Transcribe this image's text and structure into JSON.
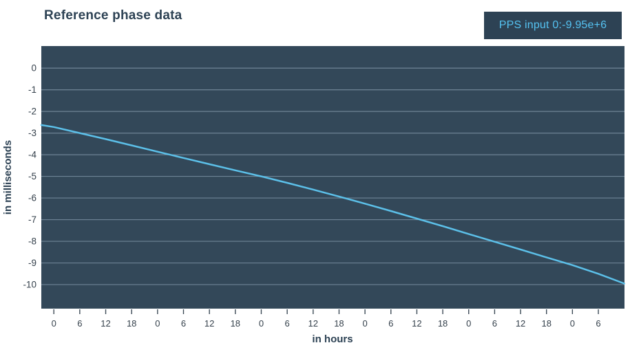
{
  "header": {
    "title": "Reference phase data"
  },
  "legend": {
    "label": "PPS input 0:-9.95e+6"
  },
  "chart_data": {
    "type": "line",
    "title": "Reference phase data",
    "xlabel": "in hours",
    "ylabel": "in milliseconds",
    "legend_entries": [
      "PPS input 0:-9.95e+6"
    ],
    "legend_position": "top-right",
    "grid": "horizontal-only",
    "axes": {
      "x_min": -2.9,
      "x_max": 132.05,
      "y_min": -11.11,
      "y_max": 1.02
    },
    "x_ticks": [
      {
        "t": 0,
        "label": "0"
      },
      {
        "t": 6,
        "label": "6"
      },
      {
        "t": 12,
        "label": "12"
      },
      {
        "t": 18,
        "label": "18"
      },
      {
        "t": 24,
        "label": "0"
      },
      {
        "t": 30,
        "label": "6"
      },
      {
        "t": 36,
        "label": "12"
      },
      {
        "t": 42,
        "label": "18"
      },
      {
        "t": 48,
        "label": "0"
      },
      {
        "t": 54,
        "label": "6"
      },
      {
        "t": 60,
        "label": "12"
      },
      {
        "t": 66,
        "label": "18"
      },
      {
        "t": 72,
        "label": "0"
      },
      {
        "t": 78,
        "label": "6"
      },
      {
        "t": 84,
        "label": "12"
      },
      {
        "t": 90,
        "label": "18"
      },
      {
        "t": 96,
        "label": "0"
      },
      {
        "t": 102,
        "label": "6"
      },
      {
        "t": 108,
        "label": "12"
      },
      {
        "t": 114,
        "label": "18"
      },
      {
        "t": 120,
        "label": "0"
      },
      {
        "t": 126,
        "label": "6"
      }
    ],
    "y_ticks": [
      {
        "v": 0,
        "label": "0"
      },
      {
        "v": -1,
        "label": "-1"
      },
      {
        "v": -2,
        "label": "-2"
      },
      {
        "v": -3,
        "label": "-3"
      },
      {
        "v": -4,
        "label": "-4"
      },
      {
        "v": -5,
        "label": "-5"
      },
      {
        "v": -6,
        "label": "-6"
      },
      {
        "v": -7,
        "label": "-7"
      },
      {
        "v": -8,
        "label": "-8"
      },
      {
        "v": -9,
        "label": "-9"
      },
      {
        "v": -10,
        "label": "-10"
      }
    ],
    "series": [
      {
        "name": "PPS input 0",
        "final_value_label": "-9.95e+6",
        "x": [
          -2.9,
          0,
          6,
          12,
          18,
          24,
          30,
          36,
          42,
          48,
          54,
          60,
          66,
          72,
          78,
          84,
          90,
          96,
          102,
          108,
          114,
          120,
          126,
          132
        ],
        "y": [
          -2.63,
          -2.72,
          -3.0,
          -3.28,
          -3.57,
          -3.86,
          -4.15,
          -4.44,
          -4.72,
          -5.0,
          -5.3,
          -5.61,
          -5.93,
          -6.26,
          -6.6,
          -6.95,
          -7.3,
          -7.66,
          -8.02,
          -8.38,
          -8.74,
          -9.1,
          -9.5,
          -9.95
        ]
      }
    ],
    "colors": {
      "plot_background": "#334859",
      "gridline": "#6f8496",
      "series_line": "#5cc0e9",
      "tick_text": "#333f4a",
      "axis_title_text": "#2d4254",
      "legend_background": "#2d4254",
      "legend_text": "#55c3f2",
      "tick_mark": "#3c4a56"
    }
  }
}
